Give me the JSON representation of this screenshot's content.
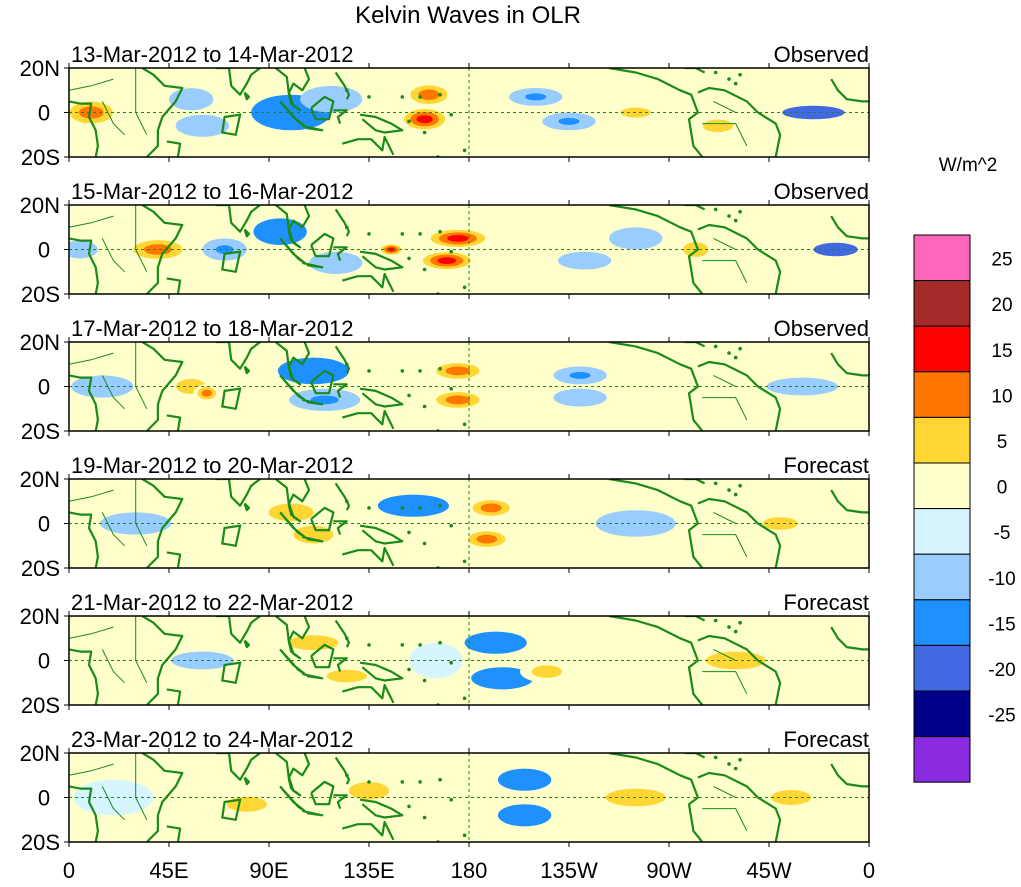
{
  "chart_data": {
    "type": "heatmap",
    "title": "Kelvin Waves in OLR",
    "units": "W/m^2",
    "x_ticks": [
      "0",
      "45E",
      "90E",
      "135E",
      "180",
      "135W",
      "90W",
      "45W",
      "0"
    ],
    "x_range": [
      0,
      360
    ],
    "y_ticks": [
      "20N",
      "0",
      "20S"
    ],
    "y_range": [
      -20,
      20
    ],
    "colorbar": {
      "labels": [
        "25",
        "20",
        "15",
        "10",
        "5",
        "0",
        "-5",
        "-10",
        "-15",
        "-20",
        "-25"
      ],
      "colors": [
        "#ff66bb",
        "#a52a2a",
        "#ff0000",
        "#ff7700",
        "#ffd633",
        "#ffffcc",
        "#d6f5ff",
        "#99ccff",
        "#1e90ff",
        "#4169e1",
        "#00008b",
        "#8a2be2"
      ]
    },
    "panels": [
      {
        "label": "13-Mar-2012 to 14-Mar-2012",
        "status": "Observed",
        "anomalies": [
          {
            "lon": 10,
            "lat": 0,
            "value": 10,
            "wlon": 14,
            "wlat": 7
          },
          {
            "lon": 55,
            "lat": 6,
            "value": -7,
            "wlon": 10,
            "wlat": 5
          },
          {
            "lon": 60,
            "lat": -6,
            "value": -8,
            "wlon": 12,
            "wlat": 5
          },
          {
            "lon": 100,
            "lat": 0,
            "value": -12,
            "wlon": 18,
            "wlat": 8
          },
          {
            "lon": 118,
            "lat": 6,
            "value": -8,
            "wlon": 14,
            "wlat": 6
          },
          {
            "lon": 162,
            "lat": 8,
            "value": 14,
            "wlon": 12,
            "wlat": 6
          },
          {
            "lon": 160,
            "lat": -3,
            "value": 18,
            "wlon": 12,
            "wlat": 6
          },
          {
            "lon": 210,
            "lat": 7,
            "value": -10,
            "wlon": 12,
            "wlat": 4
          },
          {
            "lon": 225,
            "lat": -4,
            "value": -10,
            "wlon": 12,
            "wlat": 4
          },
          {
            "lon": 255,
            "lat": 0,
            "value": 6,
            "wlon": 12,
            "wlat": 4
          },
          {
            "lon": 292,
            "lat": -6,
            "value": 6,
            "wlon": 12,
            "wlat": 5
          },
          {
            "lon": 335,
            "lat": 0,
            "value": -16,
            "wlon": 14,
            "wlat": 3
          }
        ]
      },
      {
        "label": "15-Mar-2012 to 16-Mar-2012",
        "status": "Observed",
        "anomalies": [
          {
            "lon": 5,
            "lat": 0,
            "value": -8,
            "wlon": 8,
            "wlat": 4
          },
          {
            "lon": 40,
            "lat": 0,
            "value": 14,
            "wlon": 16,
            "wlat": 6
          },
          {
            "lon": 70,
            "lat": 0,
            "value": -10,
            "wlon": 10,
            "wlat": 5
          },
          {
            "lon": 95,
            "lat": 8,
            "value": -12,
            "wlon": 12,
            "wlat": 6
          },
          {
            "lon": 120,
            "lat": -6,
            "value": -8,
            "wlon": 12,
            "wlat": 5
          },
          {
            "lon": 145,
            "lat": 0,
            "value": 16,
            "wlon": 6,
            "wlat": 3
          },
          {
            "lon": 175,
            "lat": 5,
            "value": 18,
            "wlon": 16,
            "wlat": 5
          },
          {
            "lon": 170,
            "lat": -5,
            "value": 16,
            "wlon": 14,
            "wlat": 5
          },
          {
            "lon": 232,
            "lat": -5,
            "value": -8,
            "wlon": 12,
            "wlat": 4
          },
          {
            "lon": 255,
            "lat": 5,
            "value": -8,
            "wlon": 12,
            "wlat": 5
          },
          {
            "lon": 282,
            "lat": 0,
            "value": 8,
            "wlon": 10,
            "wlat": 6
          },
          {
            "lon": 345,
            "lat": 0,
            "value": -18,
            "wlon": 10,
            "wlat": 3
          }
        ]
      },
      {
        "label": "17-Mar-2012 to 18-Mar-2012",
        "status": "Observed",
        "anomalies": [
          {
            "lon": 15,
            "lat": 0,
            "value": -8,
            "wlon": 14,
            "wlat": 5
          },
          {
            "lon": 55,
            "lat": 0,
            "value": 8,
            "wlon": 12,
            "wlat": 6
          },
          {
            "lon": 62,
            "lat": -3,
            "value": 11,
            "wlon": 6,
            "wlat": 4
          },
          {
            "lon": 110,
            "lat": 7,
            "value": -14,
            "wlon": 16,
            "wlat": 6
          },
          {
            "lon": 115,
            "lat": -6,
            "value": -10,
            "wlon": 16,
            "wlat": 5
          },
          {
            "lon": 175,
            "lat": 7,
            "value": 12,
            "wlon": 14,
            "wlat": 5
          },
          {
            "lon": 175,
            "lat": -6,
            "value": 14,
            "wlon": 14,
            "wlat": 5
          },
          {
            "lon": 230,
            "lat": 5,
            "value": -10,
            "wlon": 12,
            "wlat": 4
          },
          {
            "lon": 230,
            "lat": -5,
            "value": -8,
            "wlon": 12,
            "wlat": 4
          },
          {
            "lon": 330,
            "lat": 0,
            "value": -6,
            "wlon": 16,
            "wlat": 4
          }
        ]
      },
      {
        "label": "19-Mar-2012 to 20-Mar-2012",
        "status": "Forecast",
        "anomalies": [
          {
            "lon": 30,
            "lat": 0,
            "value": -6,
            "wlon": 16,
            "wlat": 5
          },
          {
            "lon": 100,
            "lat": 5,
            "value": 7,
            "wlon": 18,
            "wlat": 7
          },
          {
            "lon": 110,
            "lat": -5,
            "value": 6,
            "wlon": 16,
            "wlat": 7
          },
          {
            "lon": 155,
            "lat": 8,
            "value": -12,
            "wlon": 16,
            "wlat": 5
          },
          {
            "lon": 190,
            "lat": 7,
            "value": 12,
            "wlon": 12,
            "wlat": 5
          },
          {
            "lon": 188,
            "lat": -7,
            "value": 13,
            "wlon": 12,
            "wlat": 5
          },
          {
            "lon": 255,
            "lat": 0,
            "value": -6,
            "wlon": 18,
            "wlat": 6
          },
          {
            "lon": 320,
            "lat": 0,
            "value": 6,
            "wlon": 14,
            "wlat": 5
          }
        ]
      },
      {
        "label": "21-Mar-2012 to 22-Mar-2012",
        "status": "Forecast",
        "anomalies": [
          {
            "lon": 60,
            "lat": 0,
            "value": -6,
            "wlon": 14,
            "wlat": 4
          },
          {
            "lon": 110,
            "lat": 8,
            "value": 6,
            "wlon": 20,
            "wlat": 6
          },
          {
            "lon": 125,
            "lat": -7,
            "value": 8,
            "wlon": 16,
            "wlat": 5
          },
          {
            "lon": 165,
            "lat": 0,
            "value": -4,
            "wlon": 12,
            "wlat": 8
          },
          {
            "lon": 192,
            "lat": 8,
            "value": -12,
            "wlon": 14,
            "wlat": 5
          },
          {
            "lon": 195,
            "lat": -8,
            "value": -12,
            "wlon": 14,
            "wlat": 5
          },
          {
            "lon": 215,
            "lat": -5,
            "value": 9,
            "wlon": 12,
            "wlat": 5
          },
          {
            "lon": 300,
            "lat": 0,
            "value": 6,
            "wlon": 24,
            "wlat": 7
          }
        ]
      },
      {
        "label": "23-Mar-2012 to 24-Mar-2012",
        "status": "Forecast",
        "anomalies": [
          {
            "lon": 20,
            "lat": 0,
            "value": -4,
            "wlon": 18,
            "wlat": 8
          },
          {
            "lon": 80,
            "lat": -3,
            "value": 6,
            "wlon": 16,
            "wlat": 6
          },
          {
            "lon": 135,
            "lat": 3,
            "value": 7,
            "wlon": 16,
            "wlat": 7
          },
          {
            "lon": 205,
            "lat": 8,
            "value": -12,
            "wlon": 12,
            "wlat": 5
          },
          {
            "lon": 205,
            "lat": -8,
            "value": -13,
            "wlon": 12,
            "wlat": 5
          },
          {
            "lon": 255,
            "lat": 0,
            "value": 6,
            "wlon": 24,
            "wlat": 7
          },
          {
            "lon": 325,
            "lat": 0,
            "value": 6,
            "wlon": 16,
            "wlat": 6
          }
        ]
      }
    ]
  }
}
